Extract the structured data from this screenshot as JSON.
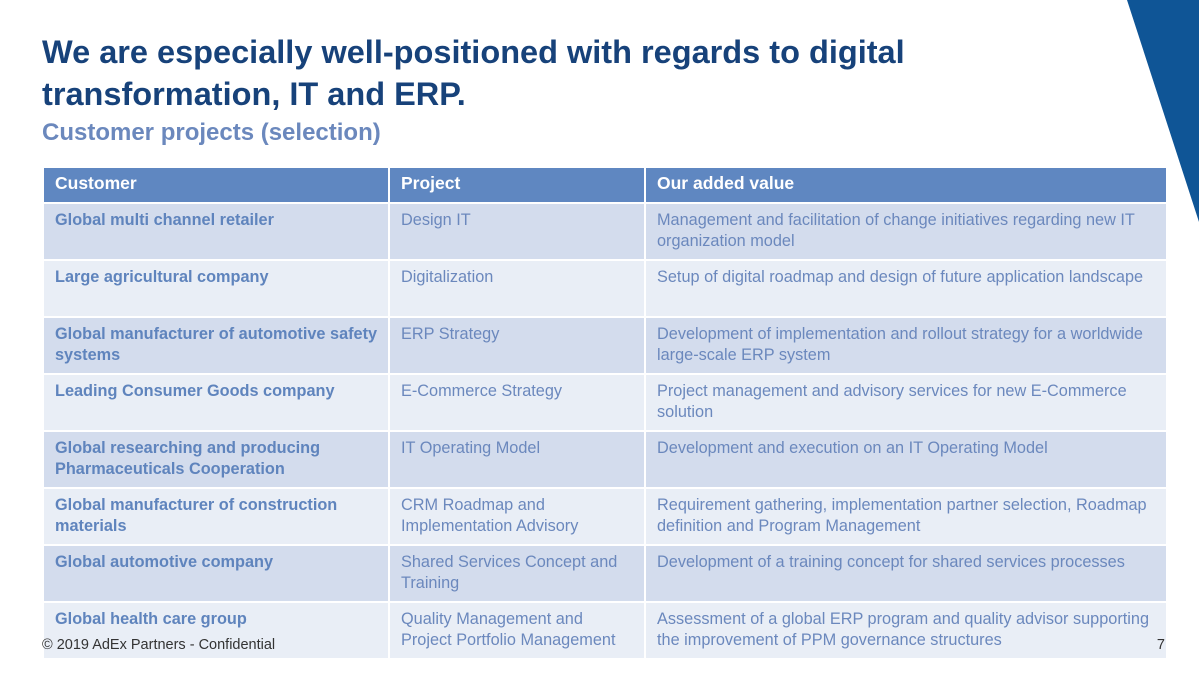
{
  "slide": {
    "title": "We are especially well-positioned with regards to digital transformation, IT and ERP.",
    "subtitle": "Customer projects (selection)"
  },
  "table": {
    "headers": [
      "Customer",
      "Project",
      "Our added value"
    ],
    "rows": [
      {
        "customer": "Global multi channel retailer",
        "project": "Design IT",
        "value": "Management and facilitation of change initiatives regarding new IT organization model"
      },
      {
        "customer": "Large agricultural company",
        "project": "Digitalization",
        "value": "Setup of digital roadmap and design of future application landscape"
      },
      {
        "customer": "Global manufacturer of automotive safety systems",
        "project": "ERP Strategy",
        "value": "Development of implementation and rollout strategy for a worldwide large-scale ERP system"
      },
      {
        "customer": "Leading Consumer Goods company",
        "project": "E-Commerce Strategy",
        "value": "Project management and advisory services for new E-Commerce solution"
      },
      {
        "customer": "Global researching and producing Pharmaceuticals Cooperation",
        "project": "IT Operating Model",
        "value": "Development and execution on an IT Operating Model"
      },
      {
        "customer": "Global manufacturer of construction materials",
        "project": "CRM Roadmap and Implementation Advisory",
        "value": "Requirement gathering, implementation partner selection, Roadmap definition and Program Management"
      },
      {
        "customer": "Global automotive company",
        "project": "Shared Services Concept and Training",
        "value": "Development of a training concept for shared services processes"
      },
      {
        "customer": "Global health care group",
        "project": "Quality Management and Project Portfolio Management",
        "value": "Assessment of a global ERP program and quality advisor supporting the improvement of PPM governance structures"
      }
    ]
  },
  "footer": {
    "copyright": "© 2019 AdEx Partners - Confidential",
    "page_number": "7"
  },
  "colors": {
    "title": "#17427a",
    "subtitle": "#6b88bd",
    "header_bg": "#5f87c1",
    "row_odd": "#d3dced",
    "row_even": "#e9eef6",
    "corner_accent": "#0f5596"
  }
}
